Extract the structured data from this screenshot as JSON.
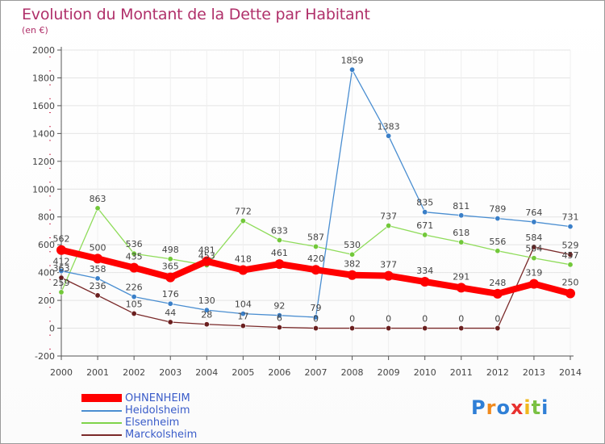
{
  "chart_data": {
    "type": "line",
    "title": "Evolution du Montant de la Dette par Habitant",
    "subtitle": "(en €)",
    "xlabel": "",
    "ylabel": "",
    "x": [
      "2000",
      "2001",
      "2002",
      "2003",
      "2004",
      "2005",
      "2006",
      "2007",
      "2008",
      "2009",
      "2010",
      "2011",
      "2012",
      "2013",
      "2014"
    ],
    "ylim": [
      -200,
      2000
    ],
    "yticks": [
      "-200",
      "0",
      "200",
      "400",
      "600",
      "800",
      "1000",
      "1200",
      "1400",
      "1600",
      "1800",
      "2000"
    ],
    "grid": true,
    "legend_position": "bottom-left",
    "series": [
      {
        "name": "OHNENHEIM",
        "color": "#ff0000",
        "values": [
          562,
          500,
          435,
          365,
          481,
          418,
          461,
          420,
          382,
          377,
          334,
          291,
          248,
          319,
          250
        ]
      },
      {
        "name": "Heidolsheim",
        "color": "#4a8ed1",
        "values": [
          412,
          358,
          226,
          176,
          130,
          104,
          92,
          79,
          1859,
          1383,
          835,
          811,
          789,
          764,
          731
        ]
      },
      {
        "name": "Elsenheim",
        "color": "#7fd34a",
        "values": [
          259,
          863,
          536,
          498,
          453,
          772,
          633,
          587,
          530,
          737,
          671,
          618,
          556,
          504,
          457
        ]
      },
      {
        "name": "Marckolsheim",
        "color": "#7a2a2a",
        "values": [
          363,
          236,
          105,
          44,
          28,
          17,
          6,
          0,
          0,
          0,
          0,
          0,
          0,
          584,
          529
        ]
      }
    ]
  },
  "logo": {
    "text": "Proxiti",
    "colors": [
      "#2f7fd6",
      "#f08a1e",
      "#2f7fd6",
      "#e8312f",
      "#f0b81e",
      "#7ac143",
      "#2f7fd6"
    ]
  }
}
